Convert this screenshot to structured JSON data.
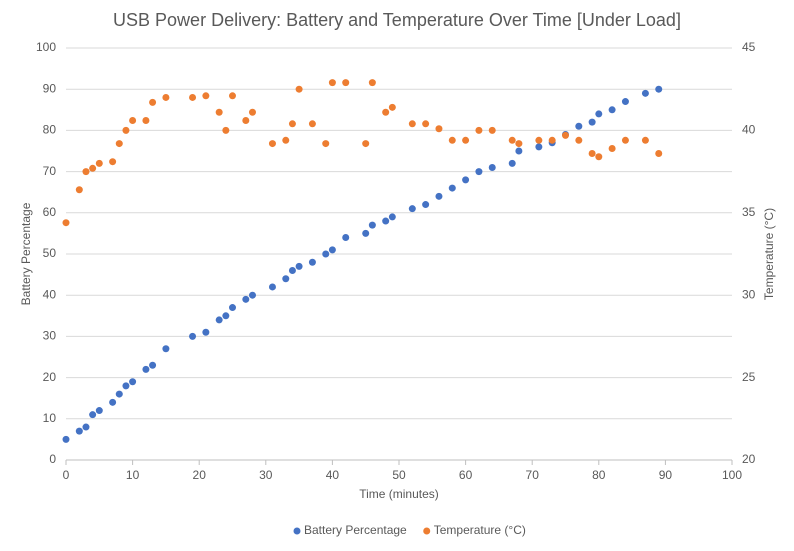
{
  "chart_data": {
    "type": "scatter",
    "title": "USB Power Delivery: Battery and Temperature Over Time [Under Load]",
    "x_label": "Time (minutes)",
    "y_label": "Battery Percentage",
    "y2_label": "Temperature (°C)",
    "x": [
      0,
      2,
      3,
      4,
      5,
      7,
      8,
      9,
      10,
      12,
      13,
      15,
      19,
      21,
      23,
      24,
      25,
      27,
      28,
      31,
      33,
      34,
      35,
      37,
      39,
      40,
      42,
      45,
      46,
      48,
      49,
      52,
      54,
      56,
      58,
      60,
      62,
      64,
      67,
      68,
      71,
      73,
      75,
      77,
      79,
      80,
      82,
      84,
      87,
      89
    ],
    "series": [
      {
        "name": "Battery Percentage",
        "color": "#4472c4",
        "values": [
          5,
          7,
          8,
          11,
          12,
          14,
          16,
          18,
          19,
          22,
          23,
          27,
          30,
          31,
          34,
          35,
          37,
          39,
          40,
          42,
          44,
          46,
          47,
          48,
          50,
          51,
          54,
          55,
          57,
          58,
          59,
          61,
          62,
          64,
          66,
          68,
          70,
          71,
          72,
          75,
          76,
          77,
          79,
          81,
          82,
          84,
          85,
          87,
          89,
          90
        ]
      },
      {
        "name": "Temperature (°C)",
        "color": "#ed7d31",
        "axis": "y2",
        "values": [
          34.4,
          36.4,
          37.5,
          37.7,
          38.0,
          38.1,
          39.2,
          40.0,
          40.6,
          40.6,
          41.7,
          42.0,
          42.0,
          42.1,
          41.1,
          40.0,
          42.1,
          40.6,
          41.1,
          39.2,
          39.4,
          40.4,
          42.5,
          40.4,
          39.2,
          42.9,
          42.9,
          39.2,
          42.9,
          41.1,
          41.4,
          40.4,
          40.4,
          40.1,
          39.4,
          39.4,
          40.0,
          40.0,
          39.4,
          39.2,
          39.4,
          39.4,
          39.7,
          39.4,
          38.6,
          38.4,
          38.9,
          39.4,
          39.4,
          38.6
        ]
      }
    ],
    "xlim": [
      0,
      100
    ],
    "xticks": [
      0,
      10,
      20,
      30,
      40,
      50,
      60,
      70,
      80,
      90,
      100
    ],
    "ylim": [
      0,
      100
    ],
    "yticks": [
      0,
      10,
      20,
      30,
      40,
      50,
      60,
      70,
      80,
      90,
      100
    ],
    "y2lim": [
      20,
      45
    ],
    "y2ticks": [
      20,
      25,
      30,
      35,
      40,
      45
    ],
    "grid": true,
    "legend": "bottom"
  }
}
